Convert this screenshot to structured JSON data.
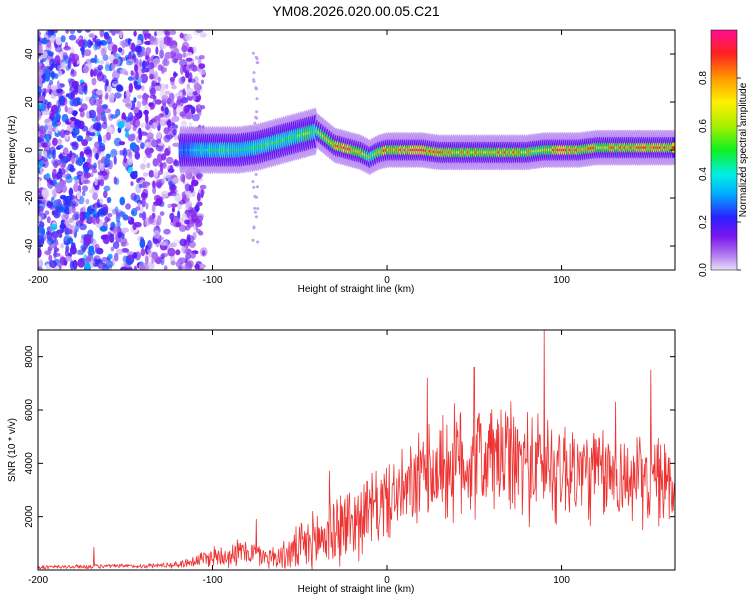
{
  "figure_title": "YM08.2026.020.00.05.C21",
  "chart_data": [
    {
      "type": "heatmap",
      "xlabel": "Height of straight line (km)",
      "ylabel": "Frequency (Hz)",
      "xlim": [
        -200,
        165
      ],
      "ylim": [
        -50,
        50
      ],
      "x_ticks": [
        -200,
        -100,
        0,
        100
      ],
      "x_tick_labels": [
        "-200",
        "-100",
        "0",
        "100"
      ],
      "y_ticks": [
        -40,
        -20,
        0,
        20,
        40
      ],
      "y_tick_labels": [
        "-40",
        "-20",
        "0",
        "20",
        "40"
      ],
      "colorbar": {
        "label": "Normalized spectral amplitude",
        "range": [
          0,
          1
        ],
        "ticks": [
          0.0,
          0.2,
          0.4,
          0.6,
          0.8
        ],
        "tick_labels": [
          "0.0",
          "0.2",
          "0.4",
          "0.6",
          "0.8"
        ]
      },
      "ridge": {
        "description": "dominant frequency track vs height",
        "x": [
          -115,
          -105,
          -95,
          -85,
          -75,
          -65,
          -55,
          -45,
          -40,
          -35,
          -30,
          -25,
          -20,
          -15,
          -10,
          -5,
          0,
          10,
          20,
          30,
          40,
          50,
          60,
          70,
          80,
          90,
          100,
          110,
          120,
          130,
          140,
          150,
          160,
          165
        ],
        "freq": [
          0,
          0,
          0,
          0,
          1,
          3,
          5,
          7,
          8,
          5,
          2,
          1,
          0,
          -1,
          -3,
          -1,
          0,
          0,
          0,
          -1,
          -1,
          -1,
          -1,
          -1,
          -1,
          0,
          0,
          0,
          1,
          1,
          1,
          1,
          1,
          1
        ],
        "amplitude": [
          0.3,
          0.45,
          0.5,
          0.5,
          0.5,
          0.55,
          0.55,
          0.6,
          0.55,
          0.75,
          0.8,
          0.95,
          0.85,
          0.8,
          0.6,
          0.7,
          0.85,
          0.9,
          0.95,
          0.8,
          0.75,
          0.75,
          0.8,
          0.8,
          0.75,
          0.7,
          0.9,
          0.85,
          0.75,
          0.8,
          0.85,
          0.9,
          0.85,
          0.8
        ]
      }
    },
    {
      "type": "line",
      "xlabel": "Height of straight line (km)",
      "ylabel": "SNR (10 * v/v)",
      "xlim": [
        -200,
        165
      ],
      "ylim": [
        0,
        9000
      ],
      "x_ticks": [
        -200,
        -100,
        0,
        100
      ],
      "x_tick_labels": [
        "-200",
        "-100",
        "0",
        "100"
      ],
      "y_ticks": [
        2000,
        4000,
        6000,
        8000
      ],
      "y_tick_labels": [
        "2000",
        "4000",
        "6000",
        "8000"
      ],
      "color": "#ee3333",
      "envelope": {
        "x": [
          -200,
          -180,
          -160,
          -140,
          -120,
          -110,
          -100,
          -90,
          -80,
          -70,
          -60,
          -50,
          -40,
          -30,
          -20,
          -10,
          0,
          10,
          20,
          30,
          40,
          50,
          60,
          70,
          80,
          90,
          100,
          110,
          120,
          130,
          140,
          150,
          160,
          165
        ],
        "mean": [
          100,
          120,
          140,
          150,
          200,
          350,
          500,
          600,
          700,
          500,
          500,
          800,
          1100,
          1500,
          1800,
          2200,
          2600,
          2900,
          3400,
          3800,
          4000,
          4100,
          4200,
          4100,
          4000,
          3900,
          3800,
          3700,
          3600,
          3500,
          3400,
          3300,
          3300,
          3300
        ],
        "spread": [
          80,
          80,
          80,
          80,
          120,
          250,
          400,
          500,
          500,
          400,
          500,
          900,
          1200,
          1500,
          1400,
          1400,
          1400,
          1500,
          1800,
          2000,
          2200,
          2200,
          2200,
          2100,
          2100,
          2000,
          2000,
          1900,
          1800,
          1700,
          1600,
          1600,
          1600,
          1600
        ]
      },
      "peaks": [
        {
          "x": 90,
          "y": 9000
        },
        {
          "x": 50,
          "y": 7600
        },
        {
          "x": 151,
          "y": 7500
        },
        {
          "x": 23,
          "y": 7200
        },
        {
          "x": 131,
          "y": 6300
        },
        {
          "x": -168,
          "y": 850
        },
        {
          "x": -75,
          "y": 1900
        },
        {
          "x": -33,
          "y": 3700
        }
      ]
    }
  ]
}
